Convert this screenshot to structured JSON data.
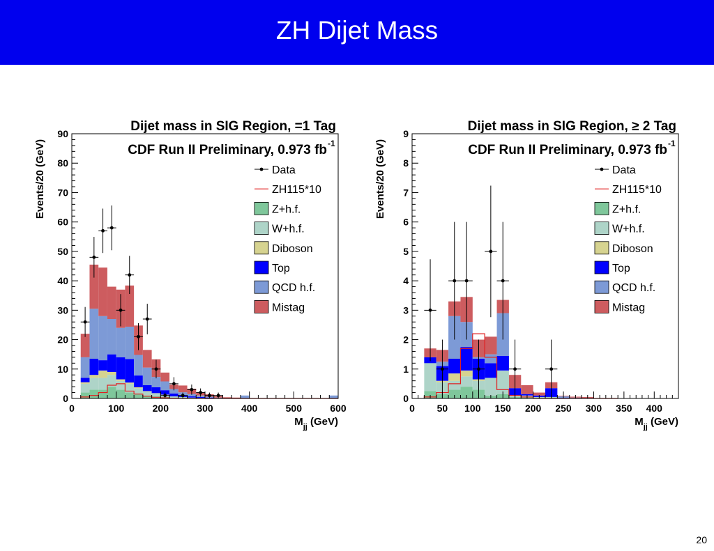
{
  "slide": {
    "title": "ZH Dijet Mass",
    "page_number": "20"
  },
  "colors": {
    "banner": "#0000ee",
    "Z+h.f.": "#7fc79b",
    "W+h.f.": "#aed4c8",
    "Diboson": "#d6d390",
    "Top": "#0000ff",
    "QCD h.f.": "#7d9ad6",
    "Mistag": "#cd5c5f",
    "ZH115*10": "#e02020",
    "Data": "#000000"
  },
  "chart_data": [
    {
      "type": "histogram",
      "title": "Dijet mass in SIG Region, =1 Tag",
      "subtitle": "CDF Run II Preliminary, 0.973 fb",
      "subtitle_sup": "-1",
      "xlabel": "M",
      "xlabel_sub": "jj",
      "xlabel_unit": " (GeV)",
      "ylabel": "Events/20 (GeV)",
      "xlim": [
        0,
        600
      ],
      "ylim": [
        0,
        90
      ],
      "xticks": [
        "0",
        "100",
        "200",
        "300",
        "400",
        "500",
        "600"
      ],
      "xtick_values": [
        0,
        100,
        200,
        300,
        400,
        500,
        600
      ],
      "yticks": [
        "0",
        "10",
        "20",
        "30",
        "40",
        "50",
        "60",
        "70",
        "80",
        "90"
      ],
      "ytick_values": [
        0,
        10,
        20,
        30,
        40,
        50,
        60,
        70,
        80,
        90
      ],
      "legend": [
        "Data",
        "ZH115*10",
        "Z+h.f.",
        "W+h.f.",
        "Diboson",
        "Top",
        "QCD h.f.",
        "Mistag"
      ],
      "bin_edges": [
        20,
        40,
        60,
        80,
        100,
        120,
        140,
        160,
        180,
        200,
        220,
        240,
        260,
        280,
        300,
        320,
        340,
        360,
        380,
        400,
        420,
        440,
        460,
        480,
        500,
        520,
        540,
        560,
        580,
        600
      ],
      "stack": [
        {
          "name": "Z+h.f.",
          "values": [
            2,
            3,
            3,
            4,
            3,
            2,
            1.5,
            1,
            0.7,
            0.5,
            0.3,
            0.2,
            0.1,
            0.1,
            0,
            0,
            0,
            0,
            0,
            0,
            0,
            0,
            0,
            0,
            0,
            0,
            0,
            0,
            0
          ]
        },
        {
          "name": "W+h.f.",
          "values": [
            3,
            4,
            4,
            4,
            3,
            3,
            2,
            1.3,
            1,
            0.7,
            0.4,
            0.3,
            0.2,
            0.1,
            0.1,
            0,
            0,
            0,
            0,
            0,
            0,
            0,
            0,
            0,
            0,
            0,
            0,
            0,
            0
          ]
        },
        {
          "name": "Diboson",
          "values": [
            0.5,
            1,
            2.5,
            1,
            0.5,
            0.4,
            0.3,
            0.2,
            0.1,
            0.1,
            0,
            0,
            0,
            0,
            0,
            0,
            0,
            0,
            0,
            0,
            0,
            0,
            0,
            0,
            0,
            0,
            0,
            0,
            0
          ]
        },
        {
          "name": "Top",
          "values": [
            1.5,
            5.5,
            3.5,
            6,
            7.5,
            8,
            4,
            2,
            2,
            1.5,
            1,
            0.6,
            0.4,
            0.3,
            0.2,
            0.1,
            0,
            0,
            0,
            0,
            0,
            0,
            0,
            0,
            0,
            0,
            0,
            0,
            0
          ]
        },
        {
          "name": "QCD h.f.",
          "values": [
            7,
            17,
            15,
            12,
            10,
            11,
            7,
            6,
            3.5,
            3,
            1.5,
            1,
            0.8,
            0.5,
            0.3,
            0.2,
            0.1,
            0.1,
            1,
            0,
            0,
            0,
            0,
            0,
            0,
            0,
            0,
            0,
            1
          ]
        },
        {
          "name": "Mistag",
          "values": [
            8,
            15,
            16.5,
            11,
            13,
            14,
            10,
            6,
            6,
            3,
            1.5,
            2.3,
            1.8,
            1,
            0.8,
            0.5,
            0.3,
            0.2,
            0,
            0,
            0,
            0,
            0,
            0,
            0,
            0,
            0,
            0,
            0
          ]
        }
      ],
      "signal": {
        "name": "ZH115*10",
        "values": [
          0.5,
          1,
          2,
          4.5,
          5,
          2.5,
          1.5,
          0.8,
          0.4,
          0.2,
          0.1,
          0,
          0,
          0,
          0,
          0,
          0,
          0,
          0,
          0,
          0,
          0,
          0,
          0,
          0,
          0,
          0,
          0,
          0
        ]
      },
      "data_points": [
        {
          "x": 30,
          "y": 26
        },
        {
          "x": 50,
          "y": 48
        },
        {
          "x": 70,
          "y": 57
        },
        {
          "x": 90,
          "y": 58
        },
        {
          "x": 110,
          "y": 30
        },
        {
          "x": 130,
          "y": 42
        },
        {
          "x": 150,
          "y": 21
        },
        {
          "x": 170,
          "y": 27
        },
        {
          "x": 190,
          "y": 10
        },
        {
          "x": 210,
          "y": 1
        },
        {
          "x": 230,
          "y": 5
        },
        {
          "x": 250,
          "y": 1
        },
        {
          "x": 270,
          "y": 3
        },
        {
          "x": 290,
          "y": 2
        },
        {
          "x": 310,
          "y": 1
        },
        {
          "x": 330,
          "y": 1
        }
      ],
      "legend_placement": "top-right"
    },
    {
      "type": "histogram",
      "title": "Dijet mass in SIG Region, ≥ 2 Tag",
      "subtitle": "CDF Run II Preliminary, 0.973 fb",
      "subtitle_sup": "-1",
      "xlabel": "M",
      "xlabel_sub": "jj",
      "xlabel_unit": " (GeV)",
      "ylabel": "Events/20 (GeV)",
      "xlim": [
        0,
        440
      ],
      "ylim": [
        0,
        9
      ],
      "xticks": [
        "0",
        "50",
        "100",
        "150",
        "200",
        "250",
        "300",
        "350",
        "400"
      ],
      "xtick_values": [
        0,
        50,
        100,
        150,
        200,
        250,
        300,
        350,
        400
      ],
      "yticks": [
        "0",
        "1",
        "2",
        "3",
        "4",
        "5",
        "6",
        "7",
        "8",
        "9"
      ],
      "ytick_values": [
        0,
        1,
        2,
        3,
        4,
        5,
        6,
        7,
        8,
        9
      ],
      "legend": [
        "Data",
        "ZH115*10",
        "Z+h.f.",
        "W+h.f.",
        "Diboson",
        "Top",
        "QCD h.f.",
        "Mistag"
      ],
      "bin_edges": [
        20,
        40,
        60,
        80,
        100,
        120,
        140,
        160,
        180,
        200,
        220,
        240,
        260,
        280,
        300,
        320,
        340
      ],
      "stack": [
        {
          "name": "Z+h.f.",
          "values": [
            0.25,
            0.15,
            0.3,
            0.4,
            0.3,
            0.1,
            0.15,
            0.05,
            0.05,
            0.02,
            0.02,
            0,
            0,
            0,
            0,
            0
          ]
        },
        {
          "name": "W+h.f.",
          "values": [
            0.95,
            0.4,
            0.3,
            0.35,
            0.3,
            0.6,
            0.8,
            0.05,
            0.05,
            0.03,
            0.03,
            0,
            0,
            0,
            0,
            0
          ]
        },
        {
          "name": "Diboson",
          "values": [
            0,
            0.05,
            0.25,
            0.2,
            0.05,
            0,
            0,
            0,
            0,
            0,
            0,
            0,
            0,
            0,
            0,
            0
          ]
        },
        {
          "name": "Top",
          "values": [
            0.2,
            0.5,
            0.5,
            0.8,
            0.7,
            0.5,
            0.5,
            0.25,
            0.05,
            0.05,
            0.3,
            0.02,
            0,
            0,
            0,
            0
          ]
        },
        {
          "name": "QCD h.f.",
          "values": [
            0,
            0.15,
            1.45,
            0.85,
            0.05,
            0.3,
            1.45,
            0,
            0,
            0,
            0,
            0.05,
            0.03,
            0.02,
            0,
            0
          ]
        },
        {
          "name": "Mistag",
          "values": [
            0.3,
            0.4,
            0.5,
            0.85,
            0.6,
            0.6,
            0.45,
            0.45,
            0.3,
            0.1,
            0.2,
            0.02,
            0.03,
            0.03,
            0,
            0
          ]
        }
      ],
      "signal": {
        "name": "ZH115*10",
        "values": [
          0.05,
          0.2,
          0.5,
          1.7,
          2.2,
          1.4,
          0.3,
          0.1,
          0.05,
          0,
          0,
          0,
          0,
          0,
          0,
          0
        ]
      },
      "data_points": [
        {
          "x": 30,
          "y": 3
        },
        {
          "x": 50,
          "y": 1
        },
        {
          "x": 70,
          "y": 4
        },
        {
          "x": 90,
          "y": 4
        },
        {
          "x": 110,
          "y": 1
        },
        {
          "x": 130,
          "y": 5
        },
        {
          "x": 150,
          "y": 4
        },
        {
          "x": 170,
          "y": 1
        },
        {
          "x": 230,
          "y": 1
        }
      ],
      "legend_placement": "top-right"
    }
  ]
}
